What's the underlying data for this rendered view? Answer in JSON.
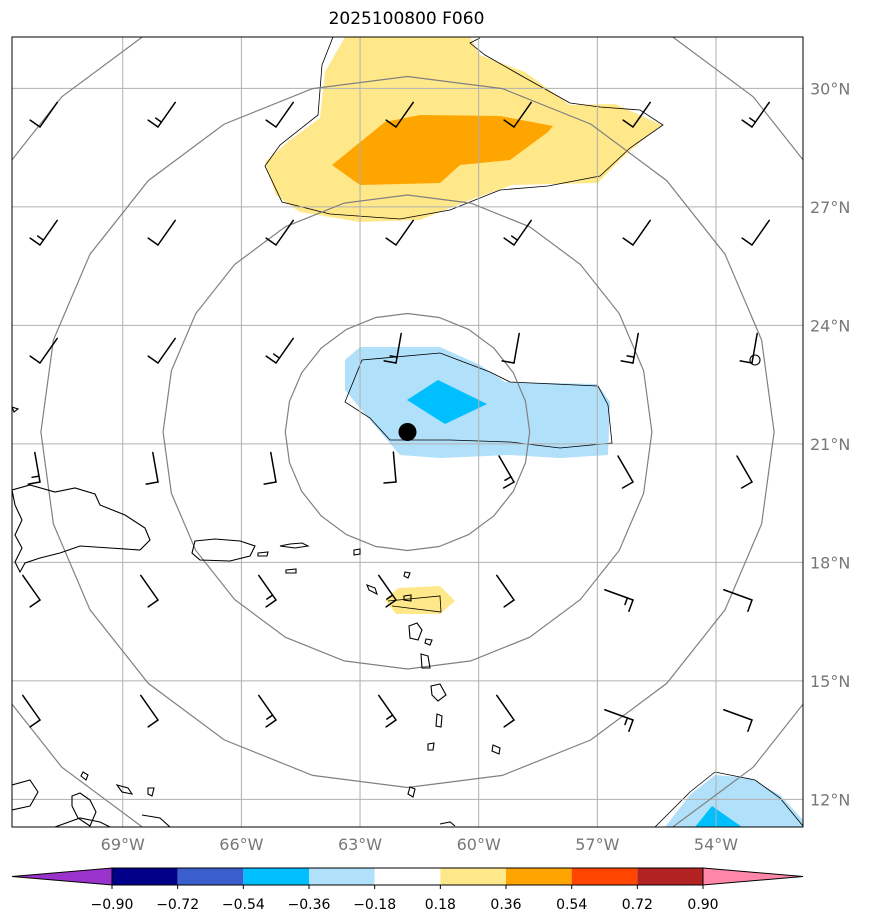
{
  "title": "2025100800 F060",
  "map": {
    "lon_range": [
      -71.8,
      -51.8
    ],
    "lat_range": [
      11.3,
      31.3
    ],
    "lon_ticks": [
      {
        "value": -69,
        "label": "69°W"
      },
      {
        "value": -66,
        "label": "66°W"
      },
      {
        "value": -63,
        "label": "63°W"
      },
      {
        "value": -60,
        "label": "60°W"
      },
      {
        "value": -57,
        "label": "57°W"
      },
      {
        "value": -54,
        "label": "54°W"
      }
    ],
    "lat_ticks": [
      {
        "value": 12,
        "label": "12°N"
      },
      {
        "value": 15,
        "label": "15°N"
      },
      {
        "value": 18,
        "label": "18°N"
      },
      {
        "value": 21,
        "label": "21°N"
      },
      {
        "value": 24,
        "label": "24°N"
      },
      {
        "value": 27,
        "label": "27°N"
      },
      {
        "value": 30,
        "label": "30°N"
      }
    ],
    "storm_center": {
      "lon": -61.8,
      "lat": 21.3
    },
    "range_rings_deg": [
      3,
      6,
      9,
      12
    ]
  },
  "colorbar": {
    "colors": [
      "#9933cc",
      "#000088",
      "#3a5fcd",
      "#00bfff",
      "#b0e0fa",
      "#ffffff",
      "#ffe88a",
      "#ffa500",
      "#ff4500",
      "#b22222",
      "#ff88aa"
    ],
    "labels": [
      "−0.90",
      "−0.72",
      "−0.54",
      "−0.36",
      "−0.18",
      "0.18",
      "0.36",
      "0.54",
      "0.72",
      "0.90"
    ]
  }
}
